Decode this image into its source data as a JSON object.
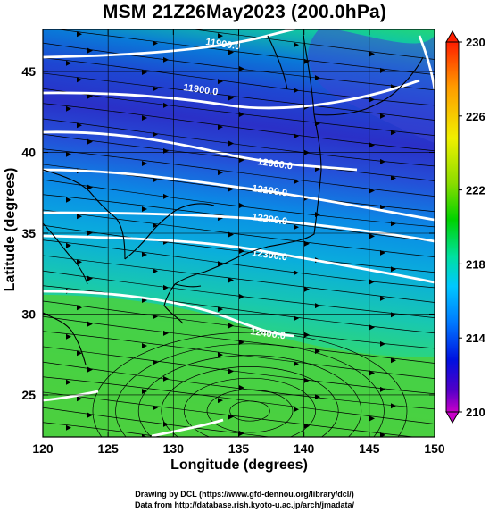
{
  "title": "MSM 21Z26May2023 (200.0hPa)",
  "chart_data": {
    "type": "map",
    "xlabel": "Longitude (degrees)",
    "ylabel": "Latitude  (degrees)",
    "xlim": [
      120,
      150
    ],
    "ylim": [
      22.4,
      47.6
    ],
    "x_ticks": [
      "120",
      "125",
      "130",
      "135",
      "140",
      "145",
      "150"
    ],
    "y_ticks": [
      "25",
      "30",
      "35",
      "40",
      "45"
    ],
    "colorbar": {
      "ticks": [
        "230",
        "226",
        "222",
        "218",
        "214",
        "210"
      ],
      "range": [
        210,
        230
      ],
      "colors": [
        "#c800c8",
        "#0000dc",
        "#0064ff",
        "#00c8ff",
        "#00e0a0",
        "#00d200",
        "#8cd200",
        "#f0f000",
        "#ff9600",
        "#ff0000"
      ]
    },
    "contour_labels": [
      "11900.0",
      "11900.0",
      "12000.0",
      "12100.0",
      "12200.0",
      "12300.0",
      "12400.0"
    ]
  },
  "credits": {
    "line1": "Drawing by DCL (https://www.gfd-dennou.org/library/dcl/)",
    "line2": "Data from http://database.rish.kyoto-u.ac.jp/arch/jmadata/"
  }
}
